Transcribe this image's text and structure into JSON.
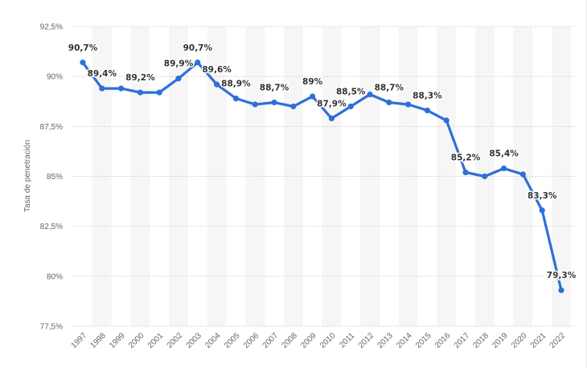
{
  "chart_data": {
    "type": "line",
    "title": "",
    "xlabel": "",
    "ylabel": "Tasa de penetración",
    "categories": [
      "1997",
      "1998",
      "1999",
      "2000",
      "2001",
      "2002",
      "2003",
      "2004",
      "2005",
      "2006",
      "2007",
      "2008",
      "2009",
      "2010",
      "2011",
      "2012",
      "2013",
      "2014",
      "2015",
      "2016",
      "2017",
      "2018",
      "2019",
      "2020",
      "2021",
      "2022"
    ],
    "series": [
      {
        "values": [
          90.7,
          89.4,
          89.4,
          89.2,
          89.2,
          89.9,
          90.7,
          89.6,
          88.9,
          88.6,
          88.7,
          88.5,
          89.0,
          87.9,
          88.5,
          89.1,
          88.7,
          88.6,
          88.3,
          87.8,
          85.2,
          85.0,
          85.4,
          85.1,
          83.3,
          79.3
        ],
        "data_labels": [
          "90,7%",
          "89,4%",
          "",
          "89,2%",
          "",
          "89,9%",
          "90,7%",
          "89,6%",
          "88,9%",
          "",
          "88,7%",
          "",
          "89%",
          "87,9%",
          "88,5%",
          "",
          "88,7%",
          "",
          "88,3%",
          "",
          "85,2%",
          "",
          "85,4%",
          "",
          "83,3%",
          "79,3%"
        ]
      }
    ],
    "ylim": [
      77.5,
      92.5
    ],
    "yticks": [
      {
        "value": 92.5,
        "label": "92,5%"
      },
      {
        "value": 90,
        "label": "90%"
      },
      {
        "value": 87.5,
        "label": "87,5%"
      },
      {
        "value": 85,
        "label": "85%"
      },
      {
        "value": 82.5,
        "label": "82,5%"
      },
      {
        "value": 80,
        "label": "80%"
      },
      {
        "value": 77.5,
        "label": "77,5%"
      }
    ],
    "grid": true,
    "colors": {
      "line": "#2f6fd8",
      "grid": "#c9c9c9",
      "band": "#f6f6f6",
      "label": "#333333",
      "tick": "#666666"
    }
  }
}
